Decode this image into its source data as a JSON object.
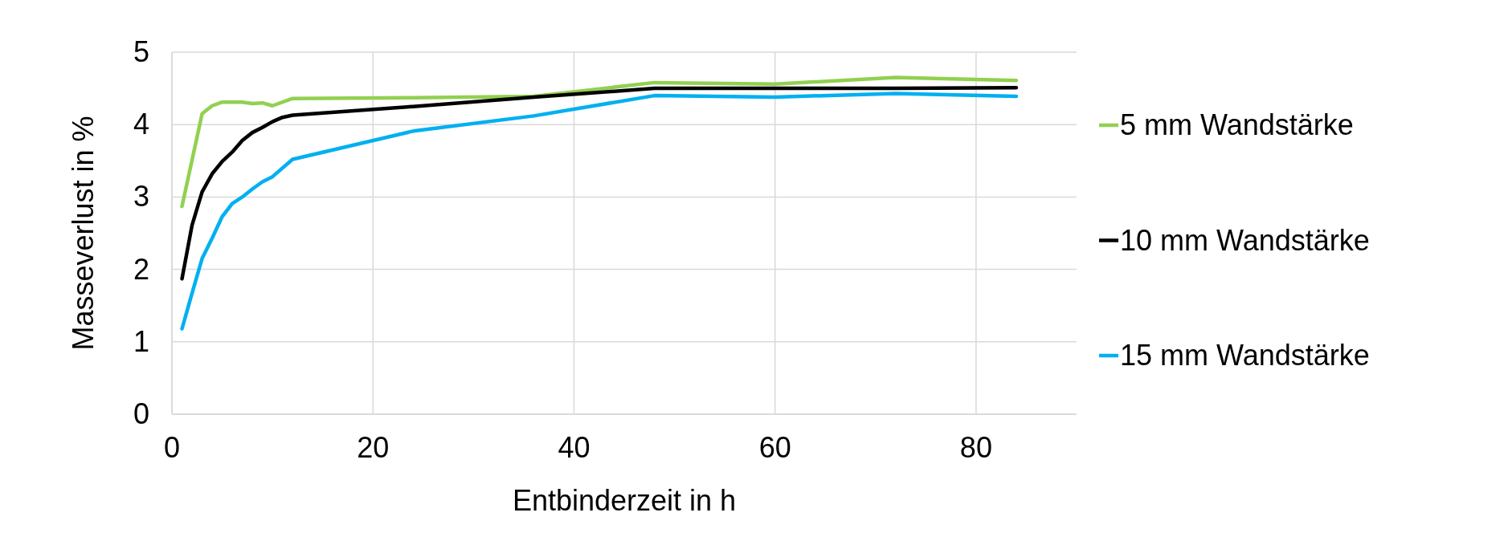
{
  "chart_data": {
    "type": "line",
    "xlabel": "Entbinderzeit in h",
    "ylabel": "Masseverlust in %",
    "xlim": [
      0,
      90
    ],
    "xticks": [
      0,
      20,
      40,
      60,
      80
    ],
    "ylim": [
      0,
      5
    ],
    "yticks": [
      0,
      1,
      2,
      3,
      4,
      5
    ],
    "grid": true,
    "legend": "right",
    "marker": "none",
    "line_style": "solid",
    "series": [
      {
        "name": "5 mm Wandstärke",
        "color": "#92d050",
        "x": [
          1,
          3,
          4,
          5,
          6,
          7,
          8,
          9,
          10,
          12,
          24,
          36,
          48,
          60,
          72,
          84
        ],
        "values": [
          2.87,
          4.15,
          4.26,
          4.31,
          4.31,
          4.31,
          4.29,
          4.3,
          4.26,
          4.36,
          4.37,
          4.39,
          4.58,
          4.56,
          4.65,
          4.61
        ]
      },
      {
        "name": "10 mm Wandstärke",
        "color": "#000000",
        "x": [
          1,
          2,
          3,
          4,
          5,
          6,
          7,
          8,
          9,
          10,
          11,
          12,
          24,
          36,
          48,
          60,
          72,
          84
        ],
        "values": [
          1.87,
          2.61,
          3.07,
          3.32,
          3.49,
          3.62,
          3.78,
          3.89,
          3.96,
          4.04,
          4.1,
          4.13,
          4.25,
          4.38,
          4.5,
          4.5,
          4.5,
          4.51
        ]
      },
      {
        "name": "15 mm Wandstärke",
        "color": "#00b0f0",
        "x": [
          1,
          2,
          3,
          4,
          5,
          6,
          7,
          8,
          9,
          10,
          12,
          24,
          36,
          48,
          60,
          72,
          84
        ],
        "values": [
          1.18,
          1.67,
          2.15,
          2.43,
          2.73,
          2.91,
          3.0,
          3.11,
          3.21,
          3.28,
          3.52,
          3.91,
          4.12,
          4.4,
          4.38,
          4.43,
          4.39
        ]
      }
    ]
  }
}
